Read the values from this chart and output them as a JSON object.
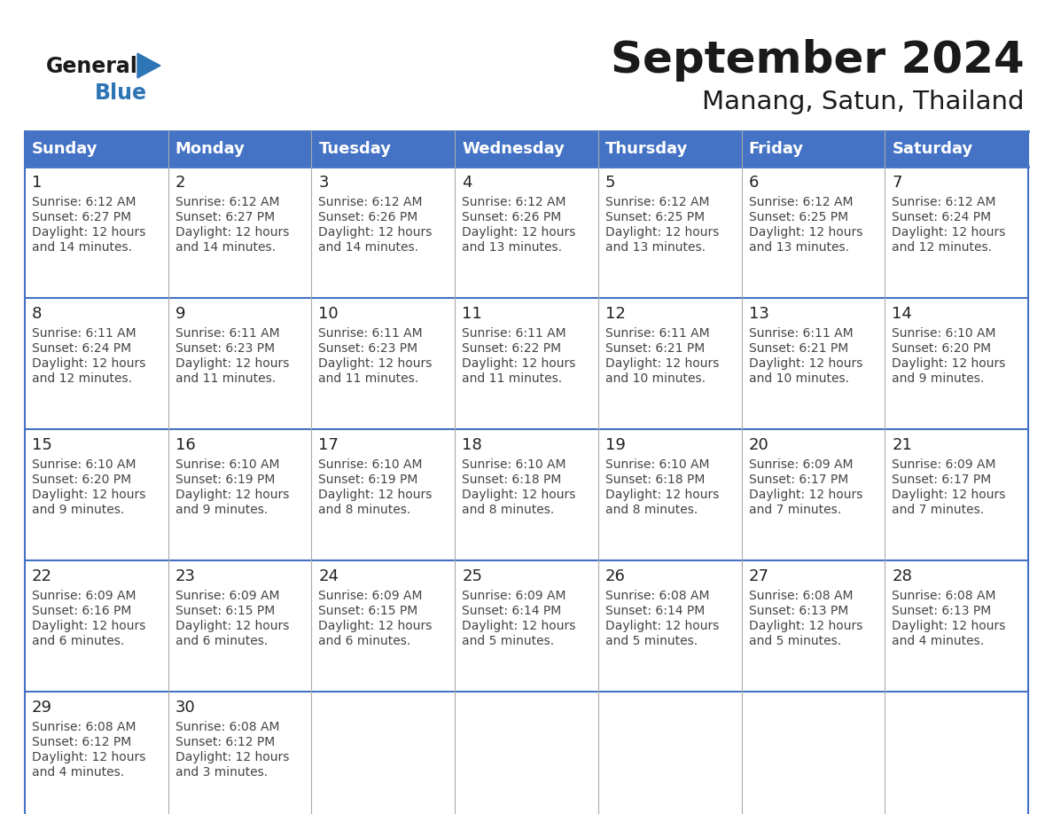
{
  "title": "September 2024",
  "subtitle": "Manang, Satun, Thailand",
  "header_bg": "#4472C4",
  "header_text_color": "#FFFFFF",
  "border_color": "#4472C4",
  "grid_color": "#AAAAAA",
  "day_names": [
    "Sunday",
    "Monday",
    "Tuesday",
    "Wednesday",
    "Thursday",
    "Friday",
    "Saturday"
  ],
  "title_color": "#1a1a1a",
  "subtitle_color": "#1a1a1a",
  "cell_text_color": "#444444",
  "day_number_color": "#222222",
  "logo_general_color": "#1a1a1a",
  "logo_blue_color": "#2E75B6",
  "logo_triangle_color": "#2E75B6",
  "calendar_data": [
    [
      {
        "day": 1,
        "sunrise": "6:12 AM",
        "sunset": "6:27 PM",
        "daylight_hours": 12,
        "daylight_minutes": 14
      },
      {
        "day": 2,
        "sunrise": "6:12 AM",
        "sunset": "6:27 PM",
        "daylight_hours": 12,
        "daylight_minutes": 14
      },
      {
        "day": 3,
        "sunrise": "6:12 AM",
        "sunset": "6:26 PM",
        "daylight_hours": 12,
        "daylight_minutes": 14
      },
      {
        "day": 4,
        "sunrise": "6:12 AM",
        "sunset": "6:26 PM",
        "daylight_hours": 12,
        "daylight_minutes": 13
      },
      {
        "day": 5,
        "sunrise": "6:12 AM",
        "sunset": "6:25 PM",
        "daylight_hours": 12,
        "daylight_minutes": 13
      },
      {
        "day": 6,
        "sunrise": "6:12 AM",
        "sunset": "6:25 PM",
        "daylight_hours": 12,
        "daylight_minutes": 13
      },
      {
        "day": 7,
        "sunrise": "6:12 AM",
        "sunset": "6:24 PM",
        "daylight_hours": 12,
        "daylight_minutes": 12
      }
    ],
    [
      {
        "day": 8,
        "sunrise": "6:11 AM",
        "sunset": "6:24 PM",
        "daylight_hours": 12,
        "daylight_minutes": 12
      },
      {
        "day": 9,
        "sunrise": "6:11 AM",
        "sunset": "6:23 PM",
        "daylight_hours": 12,
        "daylight_minutes": 11
      },
      {
        "day": 10,
        "sunrise": "6:11 AM",
        "sunset": "6:23 PM",
        "daylight_hours": 12,
        "daylight_minutes": 11
      },
      {
        "day": 11,
        "sunrise": "6:11 AM",
        "sunset": "6:22 PM",
        "daylight_hours": 12,
        "daylight_minutes": 11
      },
      {
        "day": 12,
        "sunrise": "6:11 AM",
        "sunset": "6:21 PM",
        "daylight_hours": 12,
        "daylight_minutes": 10
      },
      {
        "day": 13,
        "sunrise": "6:11 AM",
        "sunset": "6:21 PM",
        "daylight_hours": 12,
        "daylight_minutes": 10
      },
      {
        "day": 14,
        "sunrise": "6:10 AM",
        "sunset": "6:20 PM",
        "daylight_hours": 12,
        "daylight_minutes": 9
      }
    ],
    [
      {
        "day": 15,
        "sunrise": "6:10 AM",
        "sunset": "6:20 PM",
        "daylight_hours": 12,
        "daylight_minutes": 9
      },
      {
        "day": 16,
        "sunrise": "6:10 AM",
        "sunset": "6:19 PM",
        "daylight_hours": 12,
        "daylight_minutes": 9
      },
      {
        "day": 17,
        "sunrise": "6:10 AM",
        "sunset": "6:19 PM",
        "daylight_hours": 12,
        "daylight_minutes": 8
      },
      {
        "day": 18,
        "sunrise": "6:10 AM",
        "sunset": "6:18 PM",
        "daylight_hours": 12,
        "daylight_minutes": 8
      },
      {
        "day": 19,
        "sunrise": "6:10 AM",
        "sunset": "6:18 PM",
        "daylight_hours": 12,
        "daylight_minutes": 8
      },
      {
        "day": 20,
        "sunrise": "6:09 AM",
        "sunset": "6:17 PM",
        "daylight_hours": 12,
        "daylight_minutes": 7
      },
      {
        "day": 21,
        "sunrise": "6:09 AM",
        "sunset": "6:17 PM",
        "daylight_hours": 12,
        "daylight_minutes": 7
      }
    ],
    [
      {
        "day": 22,
        "sunrise": "6:09 AM",
        "sunset": "6:16 PM",
        "daylight_hours": 12,
        "daylight_minutes": 6
      },
      {
        "day": 23,
        "sunrise": "6:09 AM",
        "sunset": "6:15 PM",
        "daylight_hours": 12,
        "daylight_minutes": 6
      },
      {
        "day": 24,
        "sunrise": "6:09 AM",
        "sunset": "6:15 PM",
        "daylight_hours": 12,
        "daylight_minutes": 6
      },
      {
        "day": 25,
        "sunrise": "6:09 AM",
        "sunset": "6:14 PM",
        "daylight_hours": 12,
        "daylight_minutes": 5
      },
      {
        "day": 26,
        "sunrise": "6:08 AM",
        "sunset": "6:14 PM",
        "daylight_hours": 12,
        "daylight_minutes": 5
      },
      {
        "day": 27,
        "sunrise": "6:08 AM",
        "sunset": "6:13 PM",
        "daylight_hours": 12,
        "daylight_minutes": 5
      },
      {
        "day": 28,
        "sunrise": "6:08 AM",
        "sunset": "6:13 PM",
        "daylight_hours": 12,
        "daylight_minutes": 4
      }
    ],
    [
      {
        "day": 29,
        "sunrise": "6:08 AM",
        "sunset": "6:12 PM",
        "daylight_hours": 12,
        "daylight_minutes": 4
      },
      {
        "day": 30,
        "sunrise": "6:08 AM",
        "sunset": "6:12 PM",
        "daylight_hours": 12,
        "daylight_minutes": 3
      },
      null,
      null,
      null,
      null,
      null
    ]
  ]
}
